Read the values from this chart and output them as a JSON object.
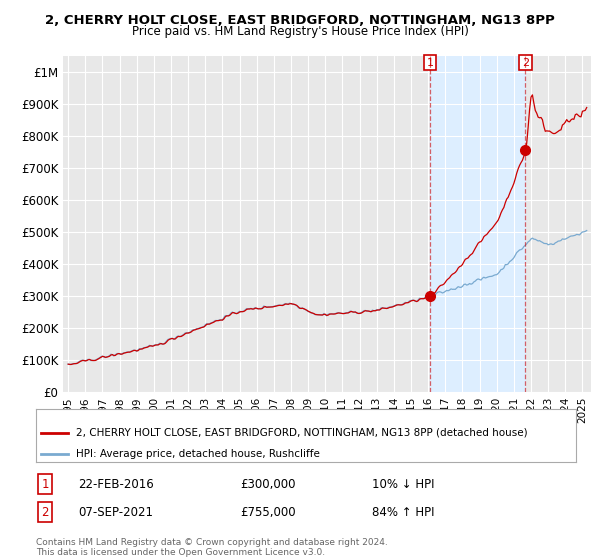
{
  "title": "2, CHERRY HOLT CLOSE, EAST BRIDGFORD, NOTTINGHAM, NG13 8PP",
  "subtitle": "Price paid vs. HM Land Registry's House Price Index (HPI)",
  "background_color": "#ffffff",
  "plot_bg_color": "#e8e8e8",
  "grid_color": "#ffffff",
  "hpi_color": "#7aaad0",
  "sale_color": "#cc0000",
  "shade_color": "#ddeeff",
  "legend_label_sale": "2, CHERRY HOLT CLOSE, EAST BRIDGFORD, NOTTINGHAM, NG13 8PP (detached house)",
  "legend_label_hpi": "HPI: Average price, detached house, Rushcliffe",
  "sale1_year": 2016.12,
  "sale1_price": 300000,
  "sale1_label": "1",
  "sale2_year": 2021.67,
  "sale2_price": 755000,
  "sale2_label": "2",
  "footnote": "Contains HM Land Registry data © Crown copyright and database right 2024.\nThis data is licensed under the Open Government Licence v3.0.",
  "table": [
    {
      "num": "1",
      "date": "22-FEB-2016",
      "price": "£300,000",
      "hpi": "10% ↓ HPI"
    },
    {
      "num": "2",
      "date": "07-SEP-2021",
      "price": "£755,000",
      "hpi": "84% ↑ HPI"
    }
  ],
  "ylim": [
    0,
    1050000
  ],
  "xlim_start": 1994.7,
  "xlim_end": 2025.5
}
